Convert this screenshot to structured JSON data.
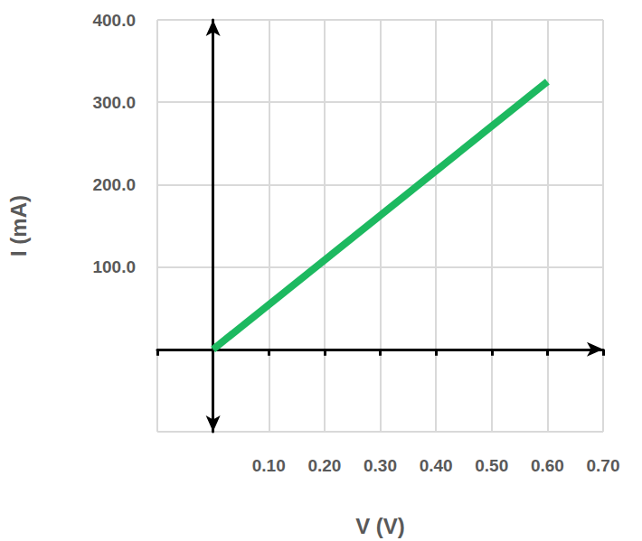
{
  "chart_data": {
    "type": "line",
    "xlabel": "V (V)",
    "ylabel": "I (mA)",
    "x": [
      0,
      0.6
    ],
    "values": [
      0,
      325
    ],
    "color": "#1db960",
    "xlim": [
      -0.1,
      0.7
    ],
    "ylim": [
      -100,
      400
    ],
    "xticks": [
      {
        "value": 0.1,
        "label": "0.10"
      },
      {
        "value": 0.2,
        "label": "0.20"
      },
      {
        "value": 0.3,
        "label": "0.30"
      },
      {
        "value": 0.4,
        "label": "0.40"
      },
      {
        "value": 0.5,
        "label": "0.50"
      },
      {
        "value": 0.6,
        "label": "0.60"
      },
      {
        "value": 0.7,
        "label": "0.70"
      }
    ],
    "yticks": [
      {
        "value": 100,
        "label": "100.0"
      },
      {
        "value": 200,
        "label": "200.0"
      },
      {
        "value": 300,
        "label": "300.0"
      },
      {
        "value": 400,
        "label": "400.0"
      }
    ],
    "grid": true
  }
}
